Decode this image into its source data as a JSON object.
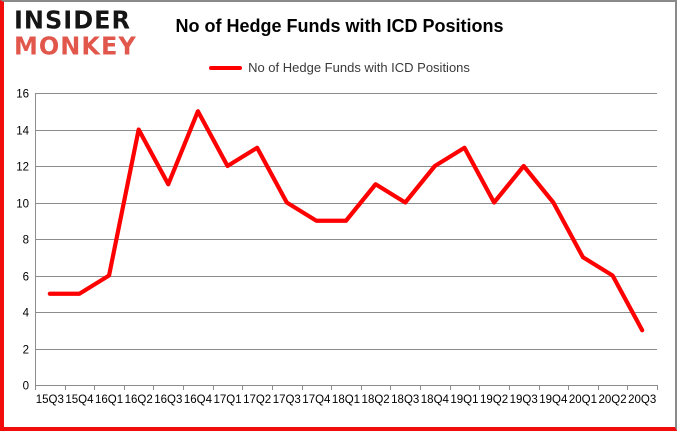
{
  "logo": {
    "line1": "INSIDER",
    "line2": "MONKEY"
  },
  "header": {
    "title": "No of Hedge Funds with ICD Positions"
  },
  "legend": {
    "label": "No of Hedge Funds with ICD Positions"
  },
  "colors": {
    "series_line": "#ff0000",
    "logo_accent": "#e2574c",
    "logo_dark": "#151515",
    "grid": "#8c8c8c",
    "axis": "#8c8c8c",
    "axis_text": "#000000",
    "frame_accent": "#f20d0d",
    "frame_gray": "#8a8a8a"
  },
  "chart_data": {
    "type": "line",
    "title": "No of Hedge Funds with ICD Positions",
    "categories": [
      "15Q3",
      "15Q4",
      "16Q1",
      "16Q2",
      "16Q3",
      "16Q4",
      "17Q1",
      "17Q2",
      "17Q3",
      "17Q4",
      "18Q1",
      "18Q2",
      "18Q3",
      "18Q4",
      "19Q1",
      "19Q2",
      "19Q3",
      "19Q4",
      "20Q1",
      "20Q2",
      "20Q3"
    ],
    "series": [
      {
        "name": "No of Hedge Funds with ICD Positions",
        "values": [
          5,
          5,
          6,
          14,
          11,
          15,
          12,
          13,
          10,
          9,
          9,
          11,
          10,
          12,
          13,
          10,
          12,
          10,
          7,
          6,
          3
        ]
      }
    ],
    "xlabel": "",
    "ylabel": "",
    "ylim": [
      0,
      16
    ],
    "ytick_step": 2,
    "yticks": [
      0,
      2,
      4,
      6,
      8,
      10,
      12,
      14,
      16
    ],
    "grid": true,
    "legend_position": "top-center",
    "line_color": "#ff0000"
  }
}
